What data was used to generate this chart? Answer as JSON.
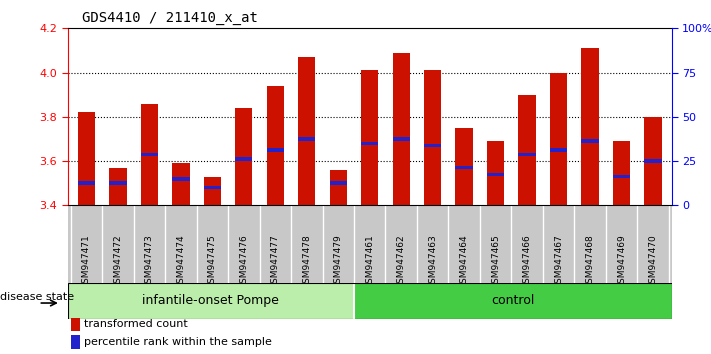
{
  "title": "GDS4410 / 211410_x_at",
  "samples": [
    "GSM947471",
    "GSM947472",
    "GSM947473",
    "GSM947474",
    "GSM947475",
    "GSM947476",
    "GSM947477",
    "GSM947478",
    "GSM947479",
    "GSM947461",
    "GSM947462",
    "GSM947463",
    "GSM947464",
    "GSM947465",
    "GSM947466",
    "GSM947467",
    "GSM947468",
    "GSM947469",
    "GSM947470"
  ],
  "transformed_count": [
    3.82,
    3.57,
    3.86,
    3.59,
    3.53,
    3.84,
    3.94,
    4.07,
    3.56,
    4.01,
    4.09,
    4.01,
    3.75,
    3.69,
    3.9,
    4.0,
    4.11,
    3.69,
    3.8
  ],
  "percentile_rank": [
    3.5,
    3.5,
    3.63,
    3.52,
    3.48,
    3.61,
    3.65,
    3.7,
    3.5,
    3.68,
    3.7,
    3.67,
    3.57,
    3.54,
    3.63,
    3.65,
    3.69,
    3.53,
    3.6
  ],
  "n_pompe": 9,
  "n_control": 10,
  "bar_color": "#CC1100",
  "blue_color": "#2222CC",
  "ymin": 3.4,
  "ymax": 4.2,
  "yticks": [
    3.4,
    3.6,
    3.8,
    4.0,
    4.2
  ],
  "right_yticks_pct": [
    0,
    25,
    50,
    75,
    100
  ],
  "right_ytick_labels": [
    "0",
    "25",
    "50",
    "75",
    "100%"
  ],
  "pompe_color": "#BBEEAA",
  "control_color": "#44CC44",
  "tick_area_color": "#C8C8C8",
  "legend_items": [
    "transformed count",
    "percentile rank within the sample"
  ],
  "legend_colors": [
    "#CC1100",
    "#2222CC"
  ],
  "disease_state_label": "disease state"
}
